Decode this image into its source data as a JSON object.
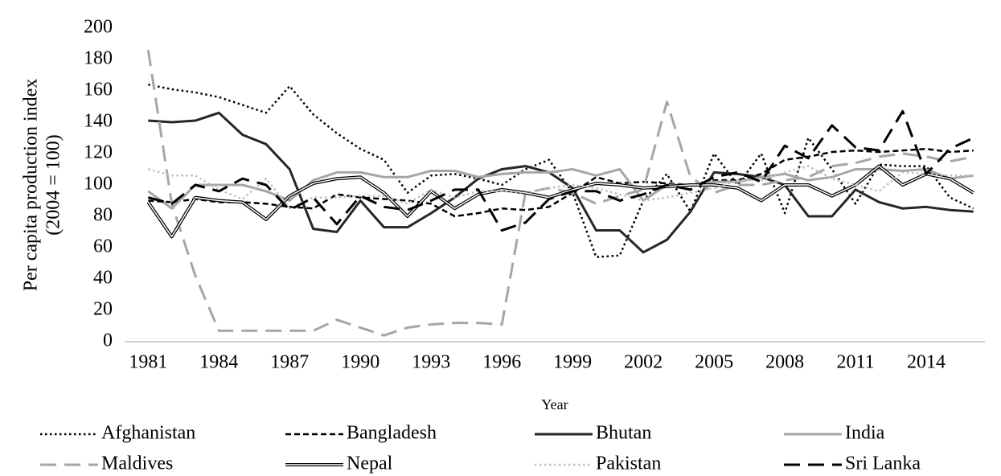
{
  "chart_data": {
    "type": "line",
    "y_label": [
      "Per capita production index",
      "(2004 = 100)"
    ],
    "x_label": "Year",
    "x": [
      1981,
      1982,
      1983,
      1984,
      1985,
      1986,
      1987,
      1988,
      1989,
      1990,
      1991,
      1992,
      1993,
      1994,
      1995,
      1996,
      1997,
      1998,
      1999,
      2000,
      2001,
      2002,
      2003,
      2004,
      2005,
      2006,
      2007,
      2008,
      2009,
      2010,
      2011,
      2012,
      2013,
      2014,
      2015,
      2016
    ],
    "xlim": [
      1980,
      2017
    ],
    "xticks": [
      1981,
      1984,
      1987,
      1990,
      1993,
      1996,
      1999,
      2002,
      2005,
      2008,
      2011,
      2014
    ],
    "ylim": [
      0,
      200
    ],
    "yticks": [
      0,
      20,
      40,
      60,
      80,
      100,
      120,
      140,
      160,
      180,
      200
    ],
    "legend": "bottom",
    "series": [
      {
        "name": "Afghanistan",
        "color": "#000000",
        "dash": "dot",
        "values": [
          164,
          161,
          159,
          156,
          151,
          146,
          163,
          145,
          133,
          123,
          116,
          95,
          106,
          107,
          104,
          100,
          110,
          116,
          95,
          54,
          55,
          90,
          107,
          83,
          120,
          100,
          120,
          82,
          130,
          110,
          88,
          113,
          112,
          112,
          92,
          85
        ]
      },
      {
        "name": "Bangladesh",
        "color": "#000000",
        "dash": "dash",
        "values": [
          90,
          89,
          91,
          89,
          89,
          88,
          86,
          85,
          94,
          92,
          91,
          90,
          88,
          80,
          82,
          85,
          84,
          86,
          95,
          105,
          101,
          102,
          101,
          100,
          103,
          103,
          107,
          116,
          118,
          121,
          122,
          121,
          122,
          123,
          121,
          122
        ]
      },
      {
        "name": "Bhutan",
        "color": "#262626",
        "dash": "solid",
        "values": [
          141,
          140,
          141,
          146,
          132,
          126,
          110,
          72,
          70,
          90,
          73,
          73,
          82,
          92,
          104,
          110,
          112,
          108,
          98,
          71,
          71,
          57,
          65,
          83,
          108,
          107,
          105,
          100,
          80,
          80,
          97,
          89,
          85,
          86,
          84,
          83
        ]
      },
      {
        "name": "India",
        "color": "#a6a6a6",
        "dash": "solid",
        "values": [
          96,
          85,
          100,
          100,
          100,
          96,
          90,
          103,
          108,
          108,
          105,
          105,
          109,
          109,
          105,
          107,
          108,
          108,
          110,
          106,
          110,
          90,
          100,
          100,
          102,
          102,
          105,
          107,
          103,
          105,
          110,
          110,
          109,
          110,
          104,
          106
        ]
      },
      {
        "name": "Maldives",
        "color": "#a6a6a6",
        "dash": "longdash",
        "values": [
          186,
          88,
          42,
          7,
          7,
          7,
          7,
          7,
          14,
          9,
          4,
          9,
          11,
          12,
          12,
          11,
          95,
          98,
          95,
          88,
          93,
          97,
          153,
          105,
          95,
          100,
          100,
          103,
          105,
          112,
          114,
          118,
          120,
          118,
          115,
          118
        ]
      },
      {
        "name": "Nepal",
        "color": "#000000",
        "dash": "double",
        "values": [
          89,
          67,
          92,
          90,
          89,
          78,
          93,
          101,
          104,
          105,
          95,
          80,
          96,
          85,
          94,
          97,
          95,
          92,
          97,
          101,
          100,
          98,
          99,
          100,
          100,
          98,
          90,
          100,
          100,
          93,
          100,
          112,
          100,
          107,
          104,
          95
        ]
      },
      {
        "name": "Pakistan",
        "color": "#bfbfbf",
        "dash": "dot",
        "values": [
          110,
          106,
          106,
          97,
          91,
          104,
          85,
          92,
          92,
          93,
          93,
          88,
          97,
          92,
          96,
          96,
          95,
          98,
          100,
          98,
          94,
          90,
          92,
          95,
          98,
          103,
          103,
          108,
          112,
          104,
          100,
          96,
          108,
          107,
          106,
          106
        ]
      },
      {
        "name": "Sri Lanka",
        "color": "#000000",
        "dash": "longdash",
        "values": [
          92,
          88,
          100,
          96,
          104,
          100,
          84,
          92,
          75,
          93,
          86,
          84,
          90,
          97,
          97,
          71,
          76,
          91,
          96,
          96,
          90,
          94,
          100,
          97,
          105,
          108,
          102,
          125,
          117,
          138,
          124,
          122,
          147,
          107,
          123,
          130
        ]
      }
    ]
  }
}
